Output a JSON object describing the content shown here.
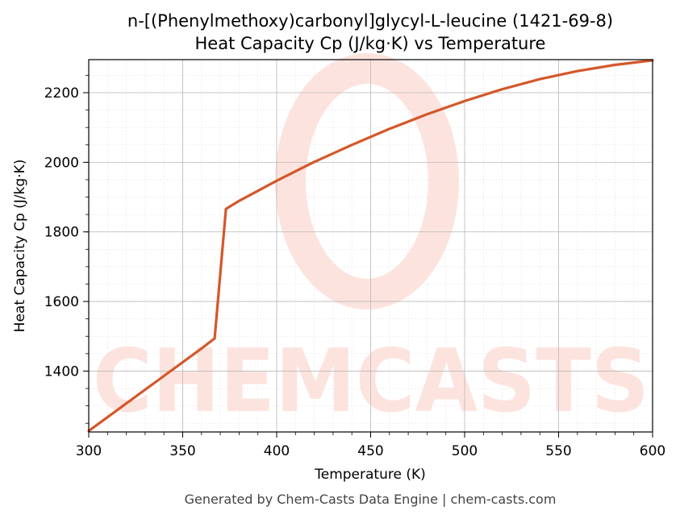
{
  "chart_data": {
    "type": "line",
    "title": "n-[(Phenylmethoxy)carbonyl]glycyl-L-leucine (1421-69-8)",
    "subtitle": "Heat Capacity Cp (J/kg·K) vs Temperature",
    "xlabel": "Temperature (K)",
    "ylabel": "Heat Capacity Cp (J/kg·K)",
    "xlim": [
      300,
      600
    ],
    "ylim": [
      1225,
      2295
    ],
    "xticks": [
      300,
      350,
      400,
      450,
      500,
      550,
      600
    ],
    "yticks": [
      1400,
      1600,
      1800,
      2000,
      2200
    ],
    "grid": true,
    "series": [
      {
        "color": "#d4572a",
        "x": [
          300,
          320,
          340,
          360,
          367,
          373,
          380,
          400,
          420,
          440,
          460,
          480,
          500,
          520,
          540,
          560,
          580,
          600
        ],
        "y": [
          1228,
          1307,
          1386,
          1465,
          1494,
          1866,
          1889,
          1947,
          2001,
          2050,
          2096,
          2138,
          2176,
          2210,
          2239,
          2262,
          2280,
          2293
        ]
      }
    ]
  },
  "watermark": {
    "text": "CHEMCASTS",
    "color": "#fde3de"
  },
  "footer": "Generated by Chem-Casts Data Engine | chem-casts.com"
}
